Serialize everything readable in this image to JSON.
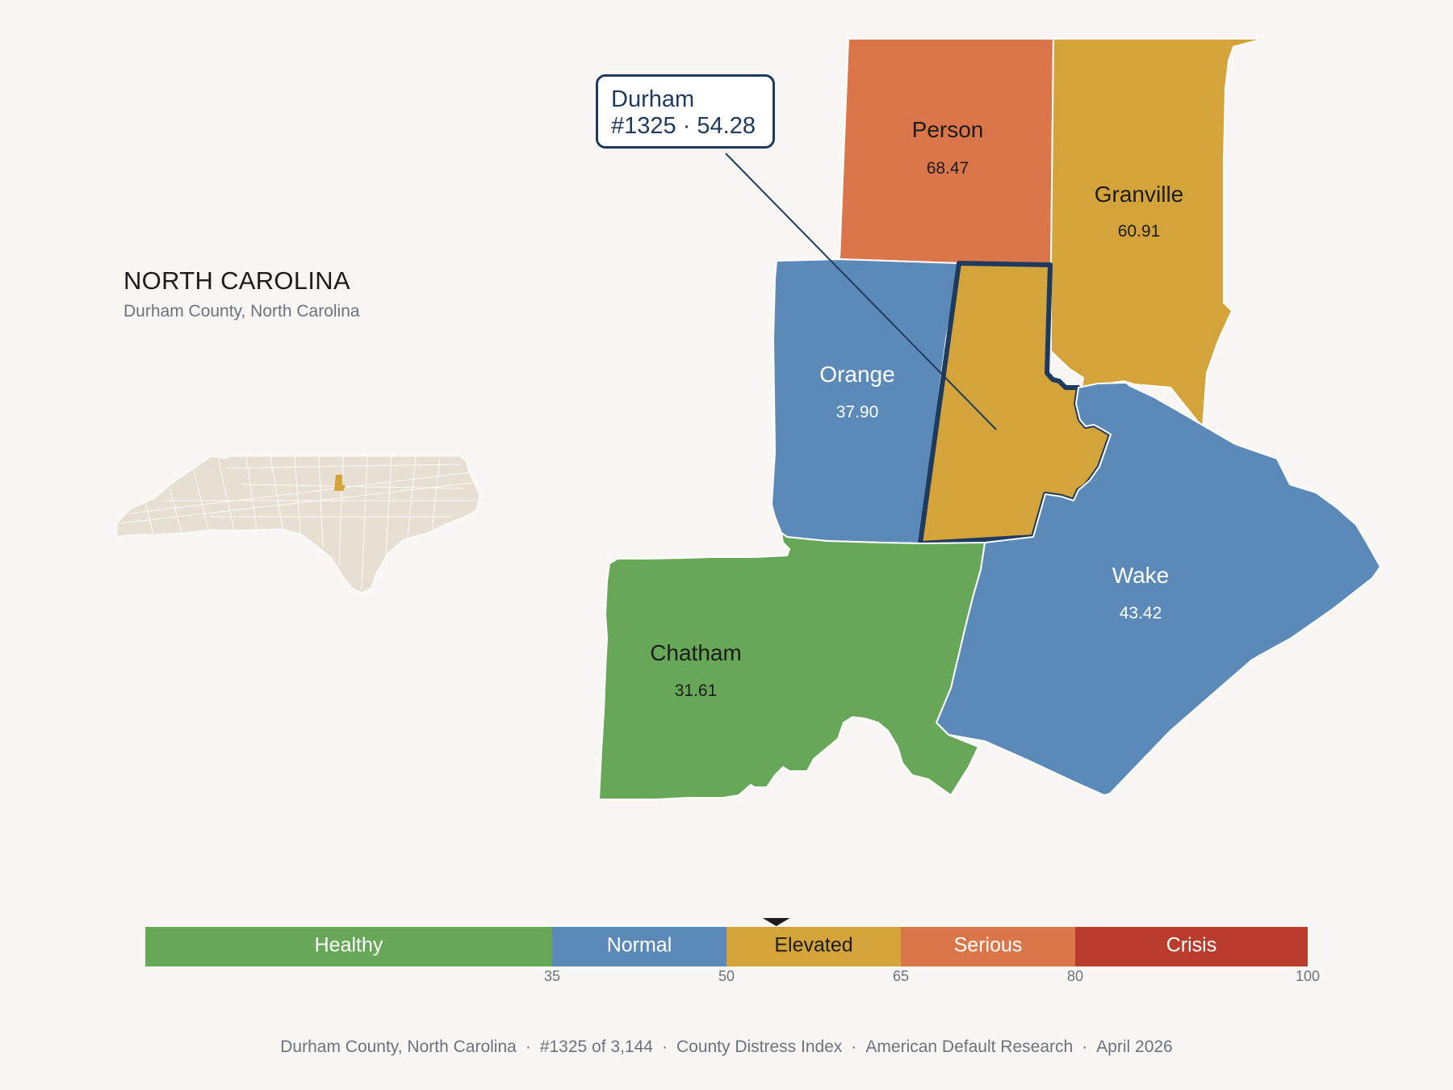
{
  "header": {
    "state_title": "NORTH CAROLINA",
    "subtitle": "Durham County, North Carolina"
  },
  "callout": {
    "county": "Durham",
    "detail": "#1325 · 54.28"
  },
  "counties": {
    "person": {
      "name": "Person",
      "value": "68.47",
      "color": "#db764a"
    },
    "granville": {
      "name": "Granville",
      "value": "60.91",
      "color": "#d4a43a"
    },
    "orange": {
      "name": "Orange",
      "value": "37.90",
      "color": "#5b8ab9"
    },
    "durham": {
      "name": "Durham",
      "value": "54.28",
      "color": "#d4a43a",
      "highlighted": true
    },
    "wake": {
      "name": "Wake",
      "value": "43.42",
      "color": "#5b8ab9"
    },
    "chatham": {
      "name": "Chatham",
      "value": "31.61",
      "color": "#67a758"
    }
  },
  "inset": {
    "base_color": "#e6dfd2",
    "highlight_color": "#d4a43a"
  },
  "legend": {
    "bands": [
      {
        "label": "Healthy",
        "color": "#67a758"
      },
      {
        "label": "Normal",
        "color": "#5b8ab9"
      },
      {
        "label": "Elevated",
        "color": "#d4a43a"
      },
      {
        "label": "Serious",
        "color": "#db764a"
      },
      {
        "label": "Crisis",
        "color": "#b93c2c"
      }
    ],
    "ticks": [
      "35",
      "50",
      "65",
      "80",
      "100"
    ],
    "marker_value": 54.28
  },
  "footer": {
    "location": "Durham County, North Carolina",
    "rank": "#1325 of 3,144",
    "index": "County Distress Index",
    "source": "American Default Research",
    "date": "April 2026",
    "separator": "·"
  }
}
